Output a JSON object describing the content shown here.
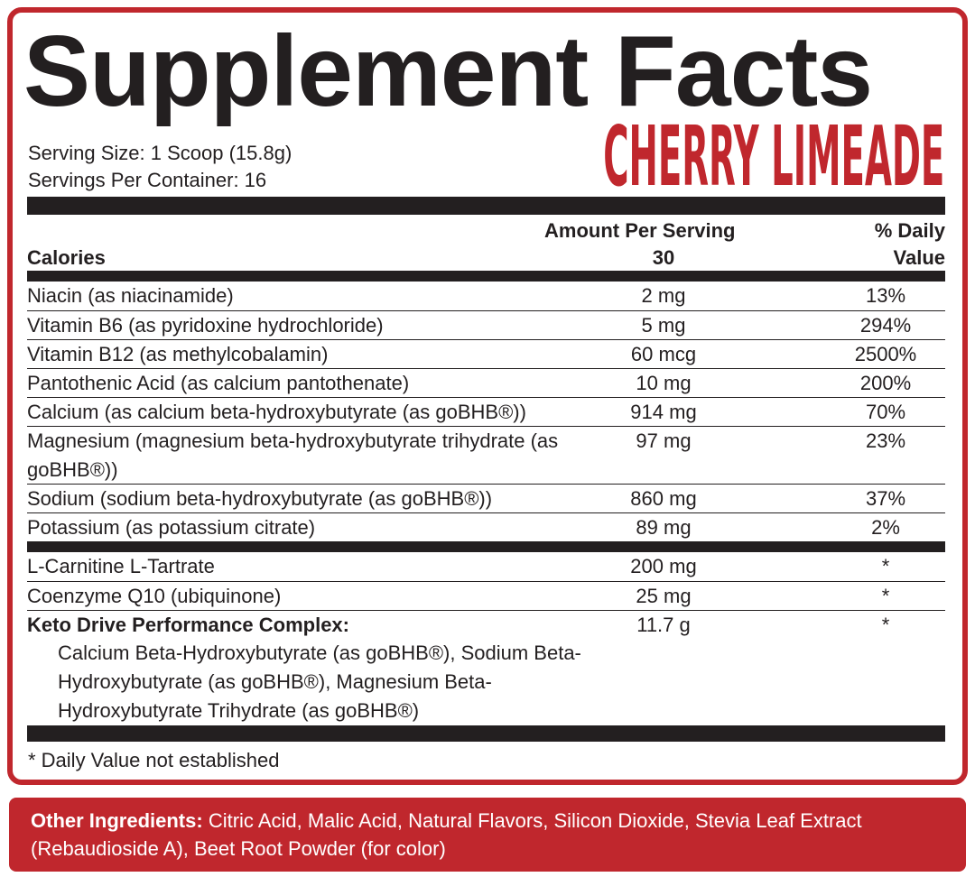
{
  "title": "Supplement Facts",
  "flavor": "CHERRY LIMEADE",
  "serving_size": "Serving Size: 1 Scoop (15.8g)",
  "servings_per_container": "Servings Per Container: 16",
  "header": {
    "amount": "Amount Per Serving",
    "daily_value": "% Daily Value"
  },
  "calories": {
    "label": "Calories",
    "amount": 30
  },
  "vitamins": [
    {
      "name": "Niacin (as niacinamide)",
      "amount": "2 mg",
      "daily_value": "13%"
    },
    {
      "name": "Vitamin B6 (as pyridoxine hydrochloride)",
      "amount": "5 mg",
      "daily_value": "294%"
    },
    {
      "name": "Vitamin B12 (as methylcobalamin)",
      "amount": "60 mcg",
      "daily_value": "2500%"
    },
    {
      "name": "Pantothenic Acid (as calcium pantothenate)",
      "amount": "10 mg",
      "daily_value": "200%"
    },
    {
      "name": "Calcium (as calcium beta-hydroxybutyrate (as goBHB®))",
      "amount": "914 mg",
      "daily_value": "70%"
    },
    {
      "name": "Magnesium (magnesium beta-hydroxybutyrate trihydrate (as goBHB®))",
      "amount": "97 mg",
      "daily_value": "23%"
    },
    {
      "name": "Sodium (sodium beta-hydroxybutyrate (as goBHB®))",
      "amount": "860 mg",
      "daily_value": "37%"
    },
    {
      "name": "Potassium (as potassium citrate)",
      "amount": "89 mg",
      "daily_value": "2%"
    }
  ],
  "other_nutrients": [
    {
      "name": "L-Carnitine L-Tartrate",
      "amount": "200 mg",
      "daily_value": "*"
    },
    {
      "name": "Coenzyme Q10 (ubiquinone)",
      "amount": "25 mg",
      "daily_value": "*"
    }
  ],
  "complex": {
    "name": "Keto Drive Performance Complex:",
    "amount": "11.7 g",
    "daily_value": "*",
    "description": "Calcium Beta-Hydroxybutyrate (as goBHB®), Sodium Beta-Hydroxybutyrate (as goBHB®), Magnesium Beta-Hydroxybutyrate Trihydrate (as goBHB®)"
  },
  "footnote": "* Daily Value not established",
  "other_ingredients": {
    "label": "Other Ingredients:",
    "text": "Citric Acid, Malic Acid, Natural Flavors, Silicon Dioxide, Stevia Leaf Extract (Rebaudioside A), Beet Root Powder (for color)"
  }
}
